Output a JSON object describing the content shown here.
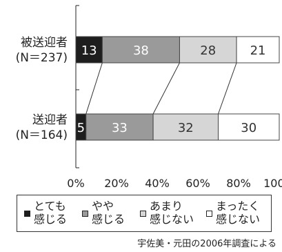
{
  "chart_data": {
    "type": "bar",
    "orientation": "horizontal",
    "stacked": true,
    "categories": [
      {
        "name": "被送迎者",
        "n": "(N＝237)"
      },
      {
        "name": "送迎者",
        "n": "(N＝164)"
      }
    ],
    "series": [
      {
        "name": "とても感じる",
        "lines": [
          "とても",
          "感じる"
        ],
        "color": "#1e1e1e",
        "text_color": "#ffffff",
        "values": [
          13,
          5
        ]
      },
      {
        "name": "やや感じる",
        "lines": [
          "やや",
          "感じる"
        ],
        "color": "#9a9a9a",
        "text_color": "#ffffff",
        "values": [
          38,
          33
        ]
      },
      {
        "name": "あまり感じない",
        "lines": [
          "あまり",
          "感じない"
        ],
        "color": "#d6d6d6",
        "text_color": "#333333",
        "values": [
          28,
          32
        ]
      },
      {
        "name": "まったく感じない",
        "lines": [
          "まったく",
          "感じない"
        ],
        "color": "#ffffff",
        "text_color": "#333333",
        "values": [
          21,
          30
        ]
      }
    ],
    "x_ticks": [
      "0%",
      "20%",
      "40%",
      "60%",
      "80%",
      "100%"
    ],
    "xlim": [
      0,
      100
    ],
    "connector_lines": true,
    "legend_position": "bottom"
  },
  "note": "宇佐美・元田の2006年調査による"
}
